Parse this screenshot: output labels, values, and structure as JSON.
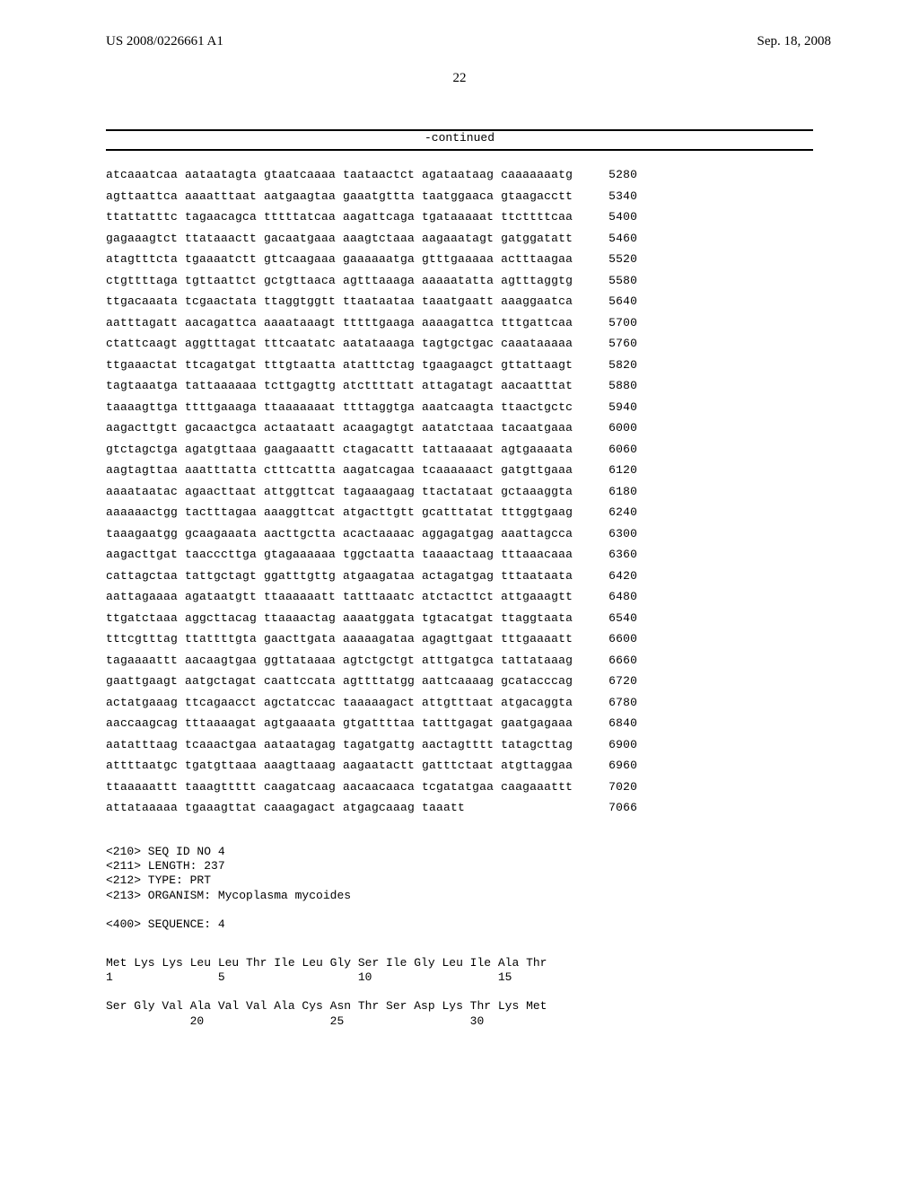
{
  "header": {
    "pub_number": "US 2008/0226661 A1",
    "pub_date": "Sep. 18, 2008",
    "page_number": "22"
  },
  "continued_label": "-continued",
  "sequence": {
    "rows": [
      {
        "groups": [
          "atcaaatcaa",
          "aataatagta",
          "gtaatcaaaa",
          "taataactct",
          "agataataag",
          "caaaaaaatg"
        ],
        "pos": "5280"
      },
      {
        "groups": [
          "agttaattca",
          "aaaatttaat",
          "aatgaagtaa",
          "gaaatgttta",
          "taatggaaca",
          "gtaagacctt"
        ],
        "pos": "5340"
      },
      {
        "groups": [
          "ttattatttc",
          "tagaacagca",
          "tttttatcaa",
          "aagattcaga",
          "tgataaaaat",
          "ttcttttcaa"
        ],
        "pos": "5400"
      },
      {
        "groups": [
          "gagaaagtct",
          "ttataaactt",
          "gacaatgaaa",
          "aaagtctaaa",
          "aagaaatagt",
          "gatggatatt"
        ],
        "pos": "5460"
      },
      {
        "groups": [
          "atagtttcta",
          "tgaaaatctt",
          "gttcaagaaa",
          "gaaaaaatga",
          "gtttgaaaaa",
          "actttaagaa"
        ],
        "pos": "5520"
      },
      {
        "groups": [
          "ctgttttaga",
          "tgttaattct",
          "gctgttaaca",
          "agtttaaaga",
          "aaaaatatta",
          "agtttaggtg"
        ],
        "pos": "5580"
      },
      {
        "groups": [
          "ttgacaaata",
          "tcgaactata",
          "ttaggtggtt",
          "ttaataataa",
          "taaatgaatt",
          "aaaggaatca"
        ],
        "pos": "5640"
      },
      {
        "groups": [
          "aatttagatt",
          "aacagattca",
          "aaaataaagt",
          "tttttgaaga",
          "aaaagattca",
          "tttgattcaa"
        ],
        "pos": "5700"
      },
      {
        "groups": [
          "ctattcaagt",
          "aggtttagat",
          "tttcaatatc",
          "aatataaaga",
          "tagtgctgac",
          "caaataaaaa"
        ],
        "pos": "5760"
      },
      {
        "groups": [
          "ttgaaactat",
          "ttcagatgat",
          "tttgtaatta",
          "atatttctag",
          "tgaagaagct",
          "gttattaagt"
        ],
        "pos": "5820"
      },
      {
        "groups": [
          "tagtaaatga",
          "tattaaaaaa",
          "tcttgagttg",
          "atcttttatt",
          "attagatagt",
          "aacaatttat"
        ],
        "pos": "5880"
      },
      {
        "groups": [
          "taaaagttga",
          "ttttgaaaga",
          "ttaaaaaaat",
          "ttttaggtga",
          "aaatcaagta",
          "ttaactgctc"
        ],
        "pos": "5940"
      },
      {
        "groups": [
          "aagacttgtt",
          "gacaactgca",
          "actaataatt",
          "acaagagtgt",
          "aatatctaaa",
          "tacaatgaaa"
        ],
        "pos": "6000"
      },
      {
        "groups": [
          "gtctagctga",
          "agatgttaaa",
          "gaagaaattt",
          "ctagacattt",
          "tattaaaaat",
          "agtgaaaata"
        ],
        "pos": "6060"
      },
      {
        "groups": [
          "aagtagttaa",
          "aaatttatta",
          "ctttcattta",
          "aagatcagaa",
          "tcaaaaaact",
          "gatgttgaaa"
        ],
        "pos": "6120"
      },
      {
        "groups": [
          "aaaataatac",
          "agaacttaat",
          "attggttcat",
          "tagaaagaag",
          "ttactataat",
          "gctaaaggta"
        ],
        "pos": "6180"
      },
      {
        "groups": [
          "aaaaaactgg",
          "tactttagaa",
          "aaaggttcat",
          "atgacttgtt",
          "gcatttatat",
          "tttggtgaag"
        ],
        "pos": "6240"
      },
      {
        "groups": [
          "taaagaatgg",
          "gcaagaaata",
          "aacttgctta",
          "acactaaaac",
          "aggagatgag",
          "aaattagcca"
        ],
        "pos": "6300"
      },
      {
        "groups": [
          "aagacttgat",
          "taacccttga",
          "gtagaaaaaa",
          "tggctaatta",
          "taaaactaag",
          "tttaaacaaa"
        ],
        "pos": "6360"
      },
      {
        "groups": [
          "cattagctaa",
          "tattgctagt",
          "ggatttgttg",
          "atgaagataa",
          "actagatgag",
          "tttaataata"
        ],
        "pos": "6420"
      },
      {
        "groups": [
          "aattagaaaa",
          "agataatgtt",
          "ttaaaaaatt",
          "tatttaaatc",
          "atctacttct",
          "attgaaagtt"
        ],
        "pos": "6480"
      },
      {
        "groups": [
          "ttgatctaaa",
          "aggcttacag",
          "ttaaaactag",
          "aaaatggata",
          "tgtacatgat",
          "ttaggtaata"
        ],
        "pos": "6540"
      },
      {
        "groups": [
          "tttcgtttag",
          "ttattttgta",
          "gaacttgata",
          "aaaaagataa",
          "agagttgaat",
          "tttgaaaatt"
        ],
        "pos": "6600"
      },
      {
        "groups": [
          "tagaaaattt",
          "aacaagtgaa",
          "ggttataaaa",
          "agtctgctgt",
          "atttgatgca",
          "tattataaag"
        ],
        "pos": "6660"
      },
      {
        "groups": [
          "gaattgaagt",
          "aatgctagat",
          "caattccata",
          "agttttatgg",
          "aattcaaaag",
          "gcatacccag"
        ],
        "pos": "6720"
      },
      {
        "groups": [
          "actatgaaag",
          "ttcagaacct",
          "agctatccac",
          "taaaaagact",
          "attgtttaat",
          "atgacaggta"
        ],
        "pos": "6780"
      },
      {
        "groups": [
          "aaccaagcag",
          "tttaaaagat",
          "agtgaaaata",
          "gtgattttaa",
          "tatttgagat",
          "gaatgagaaa"
        ],
        "pos": "6840"
      },
      {
        "groups": [
          "aatatttaag",
          "tcaaactgaa",
          "aataatagag",
          "tagatgattg",
          "aactagtttt",
          "tatagcttag"
        ],
        "pos": "6900"
      },
      {
        "groups": [
          "attttaatgc",
          "tgatgttaaa",
          "aaagttaaag",
          "aagaatactt",
          "gatttctaat",
          "atgttaggaa"
        ],
        "pos": "6960"
      },
      {
        "groups": [
          "ttaaaaattt",
          "taaagttttt",
          "caagatcaag",
          "aacaacaaca",
          "tcgatatgaa",
          "caagaaattt"
        ],
        "pos": "7020"
      },
      {
        "groups": [
          "attataaaaa",
          "tgaaagttat",
          "caaagagact",
          "atgagcaaag",
          "taaatt",
          ""
        ],
        "pos": "7066"
      }
    ]
  },
  "seq_metadata": {
    "line1": "<210> SEQ ID NO 4",
    "line2": "<211> LENGTH: 237",
    "line3": "<212> TYPE: PRT",
    "line4": "<213> ORGANISM: Mycoplasma mycoides",
    "line5": "<400> SEQUENCE: 4"
  },
  "protein": {
    "row1": "Met Lys Lys Leu Leu Thr Ile Leu Gly Ser Ile Gly Leu Ile Ala Thr",
    "row1pos": "1               5                   10                  15",
    "row2": "Ser Gly Val Ala Val Val Ala Cys Asn Thr Ser Asp Lys Thr Lys Met",
    "row2pos": "            20                  25                  30"
  }
}
